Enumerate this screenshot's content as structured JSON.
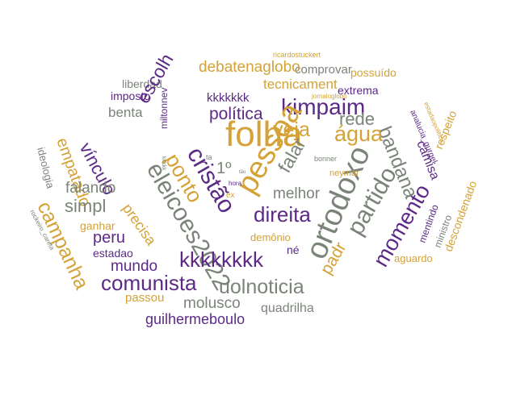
{
  "colors": {
    "purple": "#5c2a86",
    "gold": "#d4a236",
    "gray": "#7b8479",
    "background": "#ffffff"
  },
  "words": [
    {
      "text": "ricardostuckert",
      "color": "gold"
    },
    {
      "text": "comprovar",
      "color": "gray"
    },
    {
      "text": "possuído",
      "color": "gold"
    },
    {
      "text": "debatenaglobo",
      "color": "gold"
    },
    {
      "text": "liberdad",
      "color": "gray"
    },
    {
      "text": "tecnicament",
      "color": "gold"
    },
    {
      "text": "extrema",
      "color": "purple"
    },
    {
      "text": "jornaloglobo",
      "color": "gold"
    },
    {
      "text": "estadaopolitica",
      "color": "gold"
    },
    {
      "text": "imposto",
      "color": "purple"
    },
    {
      "text": "kkkkkkk",
      "color": "purple"
    },
    {
      "text": "kimpaim",
      "color": "purple"
    },
    {
      "text": "analucia_gurgel",
      "color": "purple"
    },
    {
      "text": "benta",
      "color": "gray"
    },
    {
      "text": "política",
      "color": "purple"
    },
    {
      "text": "rede",
      "color": "gray"
    },
    {
      "text": "escolh",
      "color": "purple"
    },
    {
      "text": "miltonnev",
      "color": "purple"
    },
    {
      "text": "bandana",
      "color": "gray"
    },
    {
      "text": "empatado",
      "color": "gold"
    },
    {
      "text": "folha",
      "color": "gold"
    },
    {
      "text": "veja",
      "color": "gold"
    },
    {
      "text": "água",
      "color": "gold"
    },
    {
      "text": "camisa",
      "color": "purple"
    },
    {
      "text": "respeito",
      "color": "gold"
    },
    {
      "text": "vínculo",
      "color": "purple"
    },
    {
      "text": "eleicoes2022",
      "color": "gray"
    },
    {
      "text": "kkkkk",
      "color": "gray"
    },
    {
      "text": "ta",
      "color": "gray"
    },
    {
      "text": "pessoa",
      "color": "gold"
    },
    {
      "text": "falar",
      "color": "gray"
    },
    {
      "text": "bonner",
      "color": "gray"
    },
    {
      "text": "ideologia",
      "color": "gray"
    },
    {
      "text": "cristão",
      "color": "purple"
    },
    {
      "text": "1º",
      "color": "gray"
    },
    {
      "text": "tão",
      "color": "gray"
    },
    {
      "text": "ortodoxo",
      "color": "gray"
    },
    {
      "text": "neymar",
      "color": "gold"
    },
    {
      "text": "ponto",
      "color": "gold"
    },
    {
      "text": "hora",
      "color": "purple"
    },
    {
      "text": "partido",
      "color": "gray"
    },
    {
      "text": "falando",
      "color": "gray"
    },
    {
      "text": "melhor",
      "color": "gray"
    },
    {
      "text": "ex",
      "color": "gold"
    },
    {
      "text": "descondenado",
      "color": "gold"
    },
    {
      "text": "simpl",
      "color": "gray"
    },
    {
      "text": "campanha",
      "color": "gold"
    },
    {
      "text": "precisa",
      "color": "gold"
    },
    {
      "text": "direita",
      "color": "purple"
    },
    {
      "text": "momento",
      "color": "purple"
    },
    {
      "text": "mentindo",
      "color": "purple"
    },
    {
      "text": "ministro",
      "color": "gray"
    },
    {
      "text": "rockeiro_careta",
      "color": "gray"
    },
    {
      "text": "ganhar",
      "color": "gold"
    },
    {
      "text": "peru",
      "color": "purple"
    },
    {
      "text": "demônio",
      "color": "gold"
    },
    {
      "text": "estadao",
      "color": "purple"
    },
    {
      "text": "né",
      "color": "purple"
    },
    {
      "text": "padr",
      "color": "gold"
    },
    {
      "text": "aguardo",
      "color": "gold"
    },
    {
      "text": "mundo",
      "color": "purple"
    },
    {
      "text": "kkkkkkkk",
      "color": "purple"
    },
    {
      "text": "comunista",
      "color": "purple"
    },
    {
      "text": "uolnoticia",
      "color": "gray"
    },
    {
      "text": "passou",
      "color": "gold"
    },
    {
      "text": "molusco",
      "color": "gray"
    },
    {
      "text": "quadrilha",
      "color": "gray"
    },
    {
      "text": "guilhermeboulo",
      "color": "purple"
    }
  ]
}
